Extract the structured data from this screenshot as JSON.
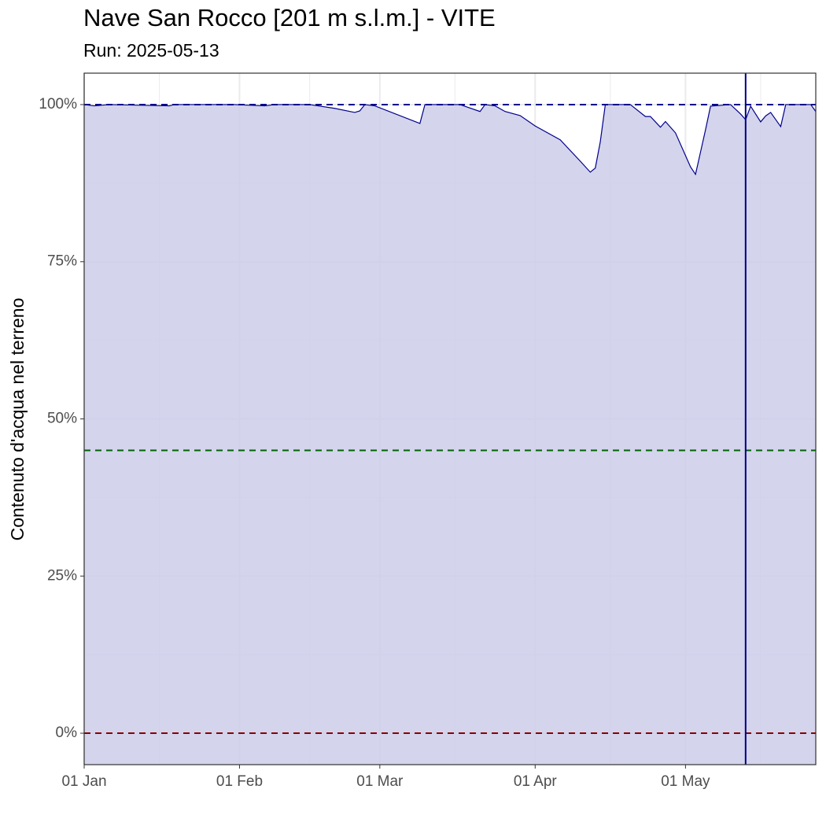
{
  "chart_data": {
    "type": "area",
    "title": "Nave San Rocco [201 m s.l.m.] - VITE",
    "subtitle": "Run: 2025-05-13",
    "y_label": "Contenuto d'acqua nel terreno",
    "x": [
      "01-01",
      "01-03",
      "01-06",
      "01-18",
      "01-19",
      "01-31",
      "02-06",
      "02-08",
      "02-15",
      "02-20",
      "02-24",
      "02-25",
      "02-26",
      "02-28",
      "03-09",
      "03-10",
      "03-17",
      "03-21",
      "03-22",
      "03-24",
      "03-26",
      "03-29",
      "04-01",
      "04-06",
      "04-10",
      "04-12",
      "04-13",
      "04-14",
      "04-15",
      "04-20",
      "04-23",
      "04-24",
      "04-26",
      "04-27",
      "04-29",
      "05-02",
      "05-03",
      "05-05",
      "05-06",
      "05-10",
      "05-12",
      "05-13",
      "05-14",
      "05-16",
      "05-17",
      "05-18",
      "05-20",
      "05-21",
      "05-26",
      "05-27"
    ],
    "series": [
      {
        "color": "#00008b",
        "fill": "#ccccea",
        "values": [
          100,
          99.8,
          100,
          99.8,
          100,
          100,
          99.8,
          100,
          100,
          99.4,
          98.75,
          99,
          100,
          99.8,
          97,
          100,
          100,
          98.9,
          100,
          99.8,
          98.9,
          98.25,
          96.6,
          94.4,
          91,
          89.25,
          89.9,
          94.1,
          100,
          100,
          98.1,
          98.1,
          96.4,
          97.3,
          95.5,
          90.1,
          88.9,
          96,
          99.75,
          100,
          98.5,
          97.6,
          99.75,
          97.25,
          98.2,
          98.75,
          96.5,
          100,
          100,
          98.9
        ]
      }
    ],
    "hlines": [
      {
        "value": 100,
        "color": "#00008b"
      },
      {
        "value": 45,
        "color": "#006400"
      },
      {
        "value": 0,
        "color": "#8b0000"
      }
    ],
    "vline": {
      "x": "05-13",
      "color": "#00008b"
    },
    "xlim": [
      "01-01",
      "05-27"
    ],
    "xticks": [
      {
        "value": "01-01",
        "label": "01 Jan"
      },
      {
        "value": "02-01",
        "label": "01 Feb"
      },
      {
        "value": "03-01",
        "label": "01 Mar"
      },
      {
        "value": "04-01",
        "label": "01 Apr"
      },
      {
        "value": "05-01",
        "label": "01 May"
      }
    ],
    "xminor": [
      "01-16",
      "02-15",
      "03-16",
      "04-16",
      "05-16"
    ],
    "ylim": [
      -5,
      105
    ],
    "yticks": [
      {
        "value": 0,
        "label": "0%"
      },
      {
        "value": 25,
        "label": "25%"
      },
      {
        "value": 50,
        "label": "50%"
      },
      {
        "value": 75,
        "label": "75%"
      },
      {
        "value": 100,
        "label": "100%"
      }
    ],
    "yminor": [
      12.5,
      37.5,
      62.5,
      87.5
    ],
    "grid": true
  }
}
